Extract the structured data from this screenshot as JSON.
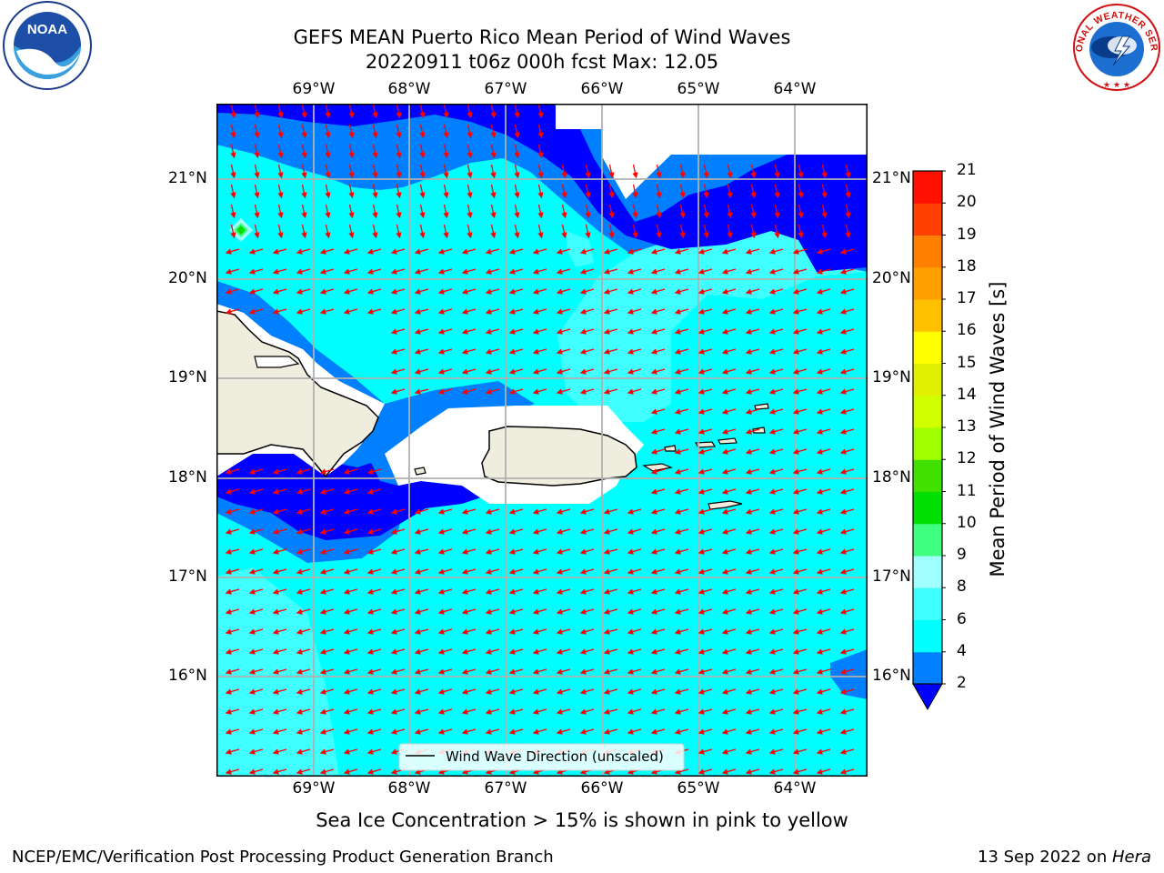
{
  "title": {
    "line1": "GEFS MEAN Puerto Rico Mean Period of Wind Waves",
    "line2": "20220911 t06z 000h fcst   Max: 12.05"
  },
  "axes": {
    "lon_top": [
      "69°W",
      "68°W",
      "67°W",
      "66°W",
      "65°W",
      "64°W"
    ],
    "lon_bottom": [
      "69°W",
      "68°W",
      "67°W",
      "66°W",
      "65°W",
      "64°W"
    ],
    "lat_left": [
      "21°N",
      "20°N",
      "19°N",
      "18°N",
      "17°N",
      "16°N"
    ],
    "lat_right": [
      "21°N",
      "20°N",
      "19°N",
      "18°N",
      "17°N",
      "16°N"
    ]
  },
  "legend": {
    "label": "Wind Wave Direction (unscaled)"
  },
  "colorbar": {
    "label": "Mean Period of Wind Waves [s]",
    "ticks": [
      "2",
      "4",
      "6",
      "8",
      "9",
      "10",
      "11",
      "12",
      "13",
      "14",
      "15",
      "16",
      "17",
      "18",
      "19",
      "20",
      "21"
    ],
    "colors": [
      "#0000ff",
      "#0080ff",
      "#00ffff",
      "#40ffff",
      "#a0ffff",
      "#40ff80",
      "#00e000",
      "#40e000",
      "#a0ff00",
      "#d0ff00",
      "#e0f000",
      "#ffff00",
      "#ffc000",
      "#ffa000",
      "#ff8000",
      "#ff4000",
      "#ff1000",
      "#ff0000"
    ]
  },
  "subtitle": "Sea Ice Concentration > 15% is shown in pink to yellow",
  "footer": {
    "left": "NCEP/EMC/Verification Post Processing Product Generation Branch",
    "date": "13 Sep 2022 on ",
    "machine": "Hera"
  },
  "logos": {
    "left": "NOAA",
    "right_text": "NATIONAL WEATHER SERVICE"
  },
  "colors": {
    "period_2_4": "#0080ff",
    "period_4_6": "#00ffff",
    "period_6_8": "#40ffff",
    "period_lt_2": "#0000ff",
    "land": "#efedde",
    "arrow": "#ff0000"
  }
}
